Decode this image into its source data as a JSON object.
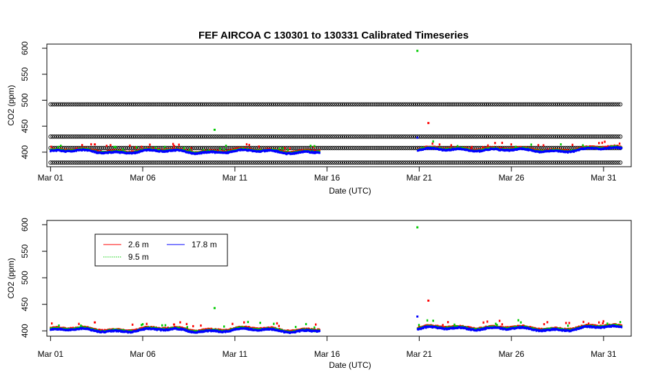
{
  "title": "FEF   AIRCOA  C    130301  to  130331   Calibrated Timeseries",
  "chart_data": [
    {
      "type": "scatter",
      "panel": "top",
      "xlabel": "Date (UTC)",
      "ylabel": "CO2 (ppm)",
      "x_domain": [
        0,
        31
      ],
      "xlim": [
        -0.2,
        31.5
      ],
      "ylim": [
        372,
        608
      ],
      "xticks": [
        {
          "label": "Mar 01",
          "value": 0
        },
        {
          "label": "Mar 06",
          "value": 5
        },
        {
          "label": "Mar 11",
          "value": 10
        },
        {
          "label": "Mar 16",
          "value": 15
        },
        {
          "label": "Mar 21",
          "value": 20
        },
        {
          "label": "Mar 26",
          "value": 25
        },
        {
          "label": "Mar 31",
          "value": 30
        }
      ],
      "yticks": [
        400,
        450,
        500,
        550,
        600
      ],
      "reference_series": [
        {
          "value": 492,
          "color": "#000000"
        },
        {
          "value": 430,
          "color": "#000000"
        },
        {
          "value": 408,
          "color": "#000000"
        },
        {
          "value": 380,
          "color": "#000000"
        }
      ],
      "series": [
        {
          "height": "2.6 m",
          "color": "#ff0000"
        },
        {
          "height": "9.5 m",
          "color": "#00cc00"
        },
        {
          "height": "17.8 m",
          "color": "#0000ff"
        }
      ],
      "data_gap": [
        14.6,
        19.9
      ],
      "outliers": [
        {
          "x": 8.9,
          "y": 443,
          "series": "9.5 m"
        },
        {
          "x": 19.9,
          "y": 595,
          "series": "9.5 m"
        },
        {
          "x": 20.5,
          "y": 456,
          "series": "2.6 m"
        },
        {
          "x": 19.9,
          "y": 428,
          "series": "17.8 m"
        },
        {
          "x": 2.4,
          "y": 415,
          "series": "2.6 m"
        },
        {
          "x": 6.7,
          "y": 412,
          "series": "2.6 m"
        }
      ]
    },
    {
      "type": "scatter",
      "panel": "bottom",
      "xlabel": "Date (UTC)",
      "ylabel": "CO2 (ppm)",
      "x_domain": [
        0,
        31
      ],
      "xlim": [
        -0.2,
        31.5
      ],
      "ylim": [
        390,
        608
      ],
      "xticks": [
        {
          "label": "Mar 01",
          "value": 0
        },
        {
          "label": "Mar 06",
          "value": 5
        },
        {
          "label": "Mar 11",
          "value": 10
        },
        {
          "label": "Mar 16",
          "value": 15
        },
        {
          "label": "Mar 21",
          "value": 20
        },
        {
          "label": "Mar 26",
          "value": 25
        },
        {
          "label": "Mar 31",
          "value": 30
        }
      ],
      "yticks": [
        400,
        450,
        500,
        550,
        600
      ],
      "legend": {
        "placement": "top-left",
        "entries": [
          {
            "label": "2.6 m",
            "color": "#ff0000"
          },
          {
            "label": "9.5 m",
            "color": "#00cc00"
          },
          {
            "label": "17.8 m",
            "color": "#0000ff"
          }
        ]
      },
      "series": [
        {
          "name": "2.6 m",
          "color": "#ff0000"
        },
        {
          "name": "9.5 m",
          "color": "#00cc00"
        },
        {
          "name": "17.8 m",
          "color": "#0000ff"
        }
      ],
      "data_gap": [
        14.6,
        19.9
      ],
      "outliers": [
        {
          "x": 8.9,
          "y": 443,
          "series": "9.5 m"
        },
        {
          "x": 19.9,
          "y": 595,
          "series": "9.5 m"
        },
        {
          "x": 20.5,
          "y": 457,
          "series": "2.6 m"
        },
        {
          "x": 19.9,
          "y": 427,
          "series": "17.8 m"
        },
        {
          "x": 2.4,
          "y": 416,
          "series": "2.6 m"
        },
        {
          "x": 6.7,
          "y": 412,
          "series": "2.6 m"
        }
      ]
    }
  ]
}
